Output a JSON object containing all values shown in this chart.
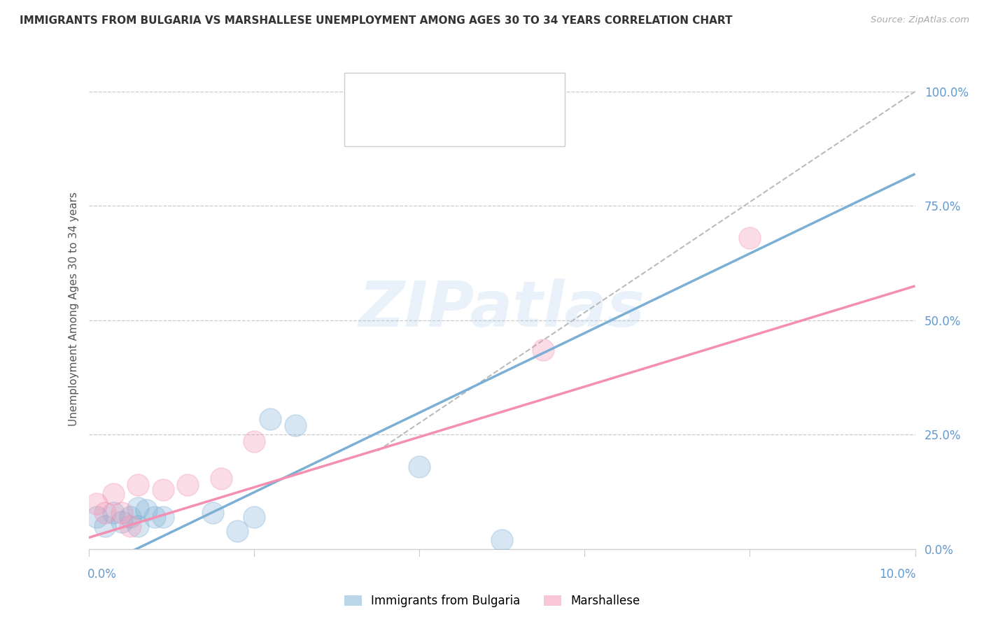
{
  "title": "IMMIGRANTS FROM BULGARIA VS MARSHALLESE UNEMPLOYMENT AMONG AGES 30 TO 34 YEARS CORRELATION CHART",
  "source": "Source: ZipAtlas.com",
  "ylabel": "Unemployment Among Ages 30 to 34 years",
  "xlim": [
    0.0,
    0.1
  ],
  "ylim": [
    0.0,
    1.05
  ],
  "yticks": [
    0.0,
    0.25,
    0.5,
    0.75,
    1.0
  ],
  "ytick_labels": [
    "0.0%",
    "25.0%",
    "50.0%",
    "75.0%",
    "100.0%"
  ],
  "blue_color": "#7BAFD4",
  "pink_color": "#F48FB1",
  "blue_scatter_x": [
    0.001,
    0.002,
    0.003,
    0.004,
    0.005,
    0.006,
    0.007,
    0.008,
    0.009,
    0.015,
    0.018,
    0.02,
    0.022,
    0.025,
    0.04,
    0.05,
    0.006
  ],
  "blue_scatter_y": [
    0.07,
    0.05,
    0.08,
    0.06,
    0.07,
    0.05,
    0.085,
    0.07,
    0.07,
    0.08,
    0.04,
    0.07,
    0.285,
    0.27,
    0.18,
    0.02,
    0.09
  ],
  "pink_scatter_x": [
    0.001,
    0.002,
    0.003,
    0.004,
    0.005,
    0.006,
    0.009,
    0.012,
    0.016,
    0.02,
    0.055,
    0.08
  ],
  "pink_scatter_y": [
    0.1,
    0.08,
    0.12,
    0.08,
    0.05,
    0.14,
    0.13,
    0.14,
    0.155,
    0.235,
    0.435,
    0.68
  ],
  "blue_line_x": [
    0.0,
    0.1
  ],
  "blue_line_y": [
    -0.05,
    0.82
  ],
  "pink_line_x": [
    0.0,
    0.1
  ],
  "pink_line_y": [
    0.025,
    0.575
  ],
  "dash_line_x": [
    0.035,
    0.1
  ],
  "dash_line_y": [
    0.215,
    1.0
  ],
  "watermark": "ZIPatlas",
  "legend_label_blue": "Immigrants from Bulgaria",
  "legend_label_pink": "Marshallese",
  "grid_color": "#CCCCCC",
  "bg_color": "#FFFFFF",
  "title_color": "#333333",
  "source_color": "#AAAAAA",
  "ylabel_color": "#555555",
  "ytick_color": "#6699CC"
}
